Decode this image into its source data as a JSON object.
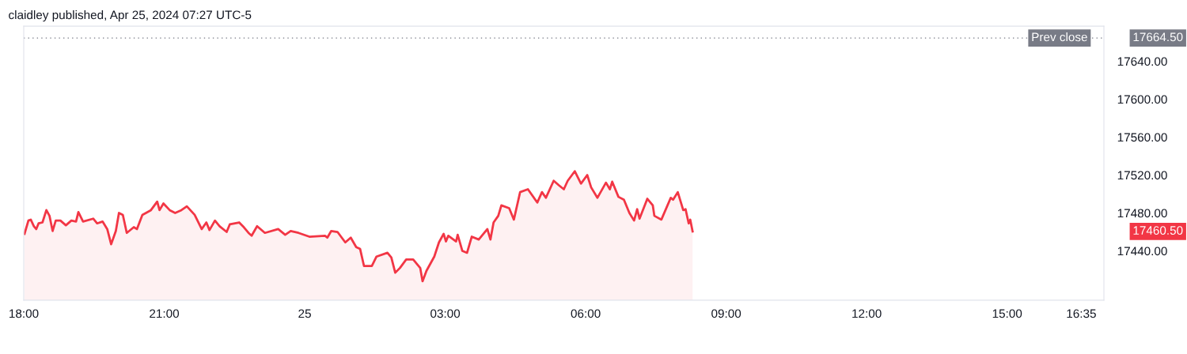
{
  "chart_data": {
    "type": "area",
    "title": "claidley published, Apr 25, 2024 07:27 UTC-5",
    "x": [
      "2024-04-24T18:01",
      "2024-04-24T18:06",
      "2024-04-24T18:09",
      "2024-04-24T18:13",
      "2024-04-24T18:16",
      "2024-04-24T18:19",
      "2024-04-24T18:24",
      "2024-04-24T18:29",
      "2024-04-24T18:33",
      "2024-04-24T18:37",
      "2024-04-24T18:41",
      "2024-04-24T18:47",
      "2024-04-24T18:54",
      "2024-04-24T19:01",
      "2024-04-24T19:07",
      "2024-04-24T19:10",
      "2024-04-24T19:16",
      "2024-04-24T19:29",
      "2024-04-24T19:34",
      "2024-04-24T19:41",
      "2024-04-24T19:47",
      "2024-04-24T19:52",
      "2024-04-24T19:58",
      "2024-04-24T20:02",
      "2024-04-24T20:07",
      "2024-04-24T20:12",
      "2024-04-24T20:21",
      "2024-04-24T20:25",
      "2024-04-24T20:32",
      "2024-04-24T20:43",
      "2024-04-24T20:51",
      "2024-04-24T20:54",
      "2024-04-24T20:59",
      "2024-04-24T21:07",
      "2024-04-24T21:14",
      "2024-04-24T21:22",
      "2024-04-24T21:29",
      "2024-04-24T21:39",
      "2024-04-24T21:48",
      "2024-04-24T21:54",
      "2024-04-24T21:58",
      "2024-04-24T22:05",
      "2024-04-24T22:11",
      "2024-04-24T22:20",
      "2024-04-24T22:24",
      "2024-04-24T22:36",
      "2024-04-24T22:42",
      "2024-04-24T22:48",
      "2024-04-24T22:52",
      "2024-04-24T22:59",
      "2024-04-24T23:09",
      "2024-04-24T23:26",
      "2024-04-24T23:35",
      "2024-04-24T23:42",
      "2024-04-24T23:52",
      "2024-04-25T00:06",
      "2024-04-25T00:26",
      "2024-04-25T00:29",
      "2024-04-25T00:34",
      "2024-04-25T00:42",
      "2024-04-25T00:52",
      "2024-04-25T00:59",
      "2024-04-25T01:06",
      "2024-04-25T01:11",
      "2024-04-25T01:16",
      "2024-04-25T01:26",
      "2024-04-25T01:32",
      "2024-04-25T01:46",
      "2024-04-25T01:51",
      "2024-04-25T01:56",
      "2024-04-25T02:02",
      "2024-04-25T02:10",
      "2024-04-25T02:19",
      "2024-04-25T02:28",
      "2024-04-25T02:31",
      "2024-04-25T02:36",
      "2024-04-25T02:46",
      "2024-04-25T02:52",
      "2024-04-25T02:58",
      "2024-04-25T03:01",
      "2024-04-25T03:04",
      "2024-04-25T03:14",
      "2024-04-25T03:16",
      "2024-04-25T03:22",
      "2024-04-25T03:28",
      "2024-04-25T03:34",
      "2024-04-25T03:43",
      "2024-04-25T03:54",
      "2024-04-25T03:58",
      "2024-04-25T04:02",
      "2024-04-25T04:08",
      "2024-04-25T04:12",
      "2024-04-25T04:22",
      "2024-04-25T04:28",
      "2024-04-25T04:36",
      "2024-04-25T04:46",
      "2024-04-25T04:58",
      "2024-04-25T05:04",
      "2024-04-25T05:09",
      "2024-04-25T05:19",
      "2024-04-25T05:26",
      "2024-04-25T05:32",
      "2024-04-25T05:37",
      "2024-04-25T05:46",
      "2024-04-25T05:54",
      "2024-04-25T06:02",
      "2024-04-25T06:07",
      "2024-04-25T06:15",
      "2024-04-25T06:26",
      "2024-04-25T06:31",
      "2024-04-25T06:34",
      "2024-04-25T06:42",
      "2024-04-25T06:49",
      "2024-04-25T06:56",
      "2024-04-25T07:02",
      "2024-04-25T07:06",
      "2024-04-25T07:09",
      "2024-04-25T07:19",
      "2024-04-25T07:26",
      "2024-04-25T07:28",
      "2024-04-25T07:37",
      "2024-04-25T07:49",
      "2024-04-25T07:52",
      "2024-04-25T07:58",
      "2024-04-25T08:05",
      "2024-04-25T08:08",
      "2024-04-25T08:12",
      "2024-04-25T08:14",
      "2024-04-25T08:17"
    ],
    "series": [
      {
        "color": "#f23645",
        "values": [
          17458,
          17472,
          17473,
          17466,
          17463,
          17469,
          17470,
          17483,
          17477,
          17461,
          17472,
          17472,
          17467,
          17472,
          17471,
          17481,
          17471,
          17474,
          17469,
          17471,
          17463,
          17447,
          17461,
          17480,
          17478,
          17459,
          17465,
          17463,
          17478,
          17483,
          17492,
          17483,
          17490,
          17483,
          17480,
          17483,
          17487,
          17478,
          17463,
          17470,
          17462,
          17472,
          17466,
          17460,
          17468,
          17470,
          17465,
          17459,
          17456,
          17466,
          17459,
          17463,
          17457,
          17461,
          17459,
          17455,
          17456,
          17454,
          17461,
          17460,
          17449,
          17454,
          17444,
          17442,
          17424,
          17424,
          17434,
          17438,
          17433,
          17417,
          17422,
          17431,
          17431,
          17422,
          17408,
          17419,
          17434,
          17449,
          17458,
          17450,
          17456,
          17450,
          17457,
          17440,
          17438,
          17455,
          17452,
          17463,
          17452,
          17470,
          17477,
          17488,
          17485,
          17473,
          17502,
          17505,
          17491,
          17502,
          17496,
          17514,
          17509,
          17505,
          17514,
          17524,
          17511,
          17520,
          17507,
          17496,
          17512,
          17505,
          17513,
          17497,
          17494,
          17480,
          17472,
          17484,
          17474,
          17495,
          17488,
          17477,
          17473,
          17496,
          17494,
          17502,
          17483,
          17484,
          17469,
          17473,
          17460.5
        ]
      }
    ],
    "xlim": [
      "2024-04-24T18:00",
      "2024-04-25T17:04"
    ],
    "xticks": [
      {
        "value": "2024-04-24T18:00",
        "label": "18:00"
      },
      {
        "value": "2024-04-24T21:00",
        "label": "21:00"
      },
      {
        "value": "2024-04-25T00:00",
        "label": "25"
      },
      {
        "value": "2024-04-25T03:00",
        "label": "03:00"
      },
      {
        "value": "2024-04-25T06:00",
        "label": "06:00"
      },
      {
        "value": "2024-04-25T09:00",
        "label": "09:00"
      },
      {
        "value": "2024-04-25T12:00",
        "label": "12:00"
      },
      {
        "value": "2024-04-25T15:00",
        "label": "15:00"
      },
      {
        "value": "2024-04-25T16:35",
        "label": "16:35"
      }
    ],
    "ylim": [
      17388,
      17677
    ],
    "yticks": [
      {
        "value": 17440,
        "label": "17440.00"
      },
      {
        "value": 17480,
        "label": "17480.00"
      },
      {
        "value": 17520,
        "label": "17520.00"
      },
      {
        "value": 17560,
        "label": "17560.00"
      },
      {
        "value": 17600,
        "label": "17600.00"
      },
      {
        "value": 17640,
        "label": "17640.00"
      }
    ],
    "ref_lines": [
      {
        "axis": "y",
        "value": 17664.5,
        "label": "Prev close",
        "color": "#787b86",
        "line_style": "dotted"
      }
    ],
    "annotations": [
      "17664.50",
      "17460.50"
    ]
  }
}
